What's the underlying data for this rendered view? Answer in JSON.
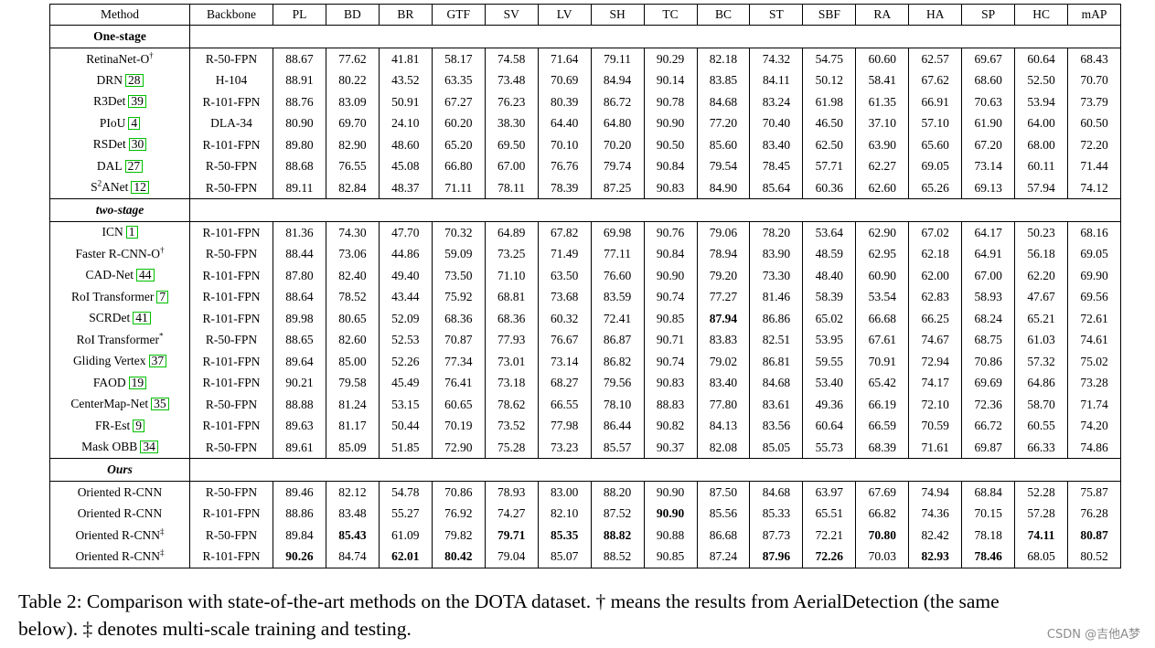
{
  "columns": [
    "Method",
    "Backbone",
    "PL",
    "BD",
    "BR",
    "GTF",
    "SV",
    "LV",
    "SH",
    "TC",
    "BC",
    "ST",
    "SBF",
    "RA",
    "HA",
    "SP",
    "HC",
    "mAP"
  ],
  "sections": [
    {
      "title": "One-stage",
      "italic": false,
      "rows": [
        {
          "name": "RetinaNet-O",
          "sup": "†",
          "ref": "",
          "backbone": "R-50-FPN",
          "values": [
            "88.67",
            "77.62",
            "41.81",
            "58.17",
            "74.58",
            "71.64",
            "79.11",
            "90.29",
            "82.18",
            "74.32",
            "54.75",
            "60.60",
            "62.57",
            "69.67",
            "60.64",
            "68.43"
          ],
          "bold": []
        },
        {
          "name": "DRN",
          "sup": "",
          "ref": "28",
          "backbone": "H-104",
          "values": [
            "88.91",
            "80.22",
            "43.52",
            "63.35",
            "73.48",
            "70.69",
            "84.94",
            "90.14",
            "83.85",
            "84.11",
            "50.12",
            "58.41",
            "67.62",
            "68.60",
            "52.50",
            "70.70"
          ],
          "bold": []
        },
        {
          "name": "R3Det",
          "sup": "",
          "ref": "39",
          "backbone": "R-101-FPN",
          "values": [
            "88.76",
            "83.09",
            "50.91",
            "67.27",
            "76.23",
            "80.39",
            "86.72",
            "90.78",
            "84.68",
            "83.24",
            "61.98",
            "61.35",
            "66.91",
            "70.63",
            "53.94",
            "73.79"
          ],
          "bold": []
        },
        {
          "name": "PIoU",
          "sup": "",
          "ref": "4",
          "backbone": "DLA-34",
          "values": [
            "80.90",
            "69.70",
            "24.10",
            "60.20",
            "38.30",
            "64.40",
            "64.80",
            "90.90",
            "77.20",
            "70.40",
            "46.50",
            "37.10",
            "57.10",
            "61.90",
            "64.00",
            "60.50"
          ],
          "bold": []
        },
        {
          "name": "RSDet",
          "sup": "",
          "ref": "30",
          "backbone": "R-101-FPN",
          "values": [
            "89.80",
            "82.90",
            "48.60",
            "65.20",
            "69.50",
            "70.10",
            "70.20",
            "90.50",
            "85.60",
            "83.40",
            "62.50",
            "63.90",
            "65.60",
            "67.20",
            "68.00",
            "72.20"
          ],
          "bold": []
        },
        {
          "name": "DAL",
          "sup": "",
          "ref": "27",
          "backbone": "R-50-FPN",
          "values": [
            "88.68",
            "76.55",
            "45.08",
            "66.80",
            "67.00",
            "76.76",
            "79.74",
            "90.84",
            "79.54",
            "78.45",
            "57.71",
            "62.27",
            "69.05",
            "73.14",
            "60.11",
            "71.44"
          ],
          "bold": []
        },
        {
          "name": "S",
          "sup2": "2",
          "nameTail": "ANet",
          "ref": "12",
          "backbone": "R-50-FPN",
          "values": [
            "89.11",
            "82.84",
            "48.37",
            "71.11",
            "78.11",
            "78.39",
            "87.25",
            "90.83",
            "84.90",
            "85.64",
            "60.36",
            "62.60",
            "65.26",
            "69.13",
            "57.94",
            "74.12"
          ],
          "bold": []
        }
      ]
    },
    {
      "title": "two-stage",
      "italic": true,
      "rows": [
        {
          "name": "ICN",
          "sup": "",
          "ref": "1",
          "backbone": "R-101-FPN",
          "values": [
            "81.36",
            "74.30",
            "47.70",
            "70.32",
            "64.89",
            "67.82",
            "69.98",
            "90.76",
            "79.06",
            "78.20",
            "53.64",
            "62.90",
            "67.02",
            "64.17",
            "50.23",
            "68.16"
          ],
          "bold": []
        },
        {
          "name": "Faster R-CNN-O",
          "sup": "†",
          "ref": "",
          "backbone": "R-50-FPN",
          "values": [
            "88.44",
            "73.06",
            "44.86",
            "59.09",
            "73.25",
            "71.49",
            "77.11",
            "90.84",
            "78.94",
            "83.90",
            "48.59",
            "62.95",
            "62.18",
            "64.91",
            "56.18",
            "69.05"
          ],
          "bold": []
        },
        {
          "name": "CAD-Net",
          "sup": "",
          "ref": "44",
          "backbone": "R-101-FPN",
          "values": [
            "87.80",
            "82.40",
            "49.40",
            "73.50",
            "71.10",
            "63.50",
            "76.60",
            "90.90",
            "79.20",
            "73.30",
            "48.40",
            "60.90",
            "62.00",
            "67.00",
            "62.20",
            "69.90"
          ],
          "bold": []
        },
        {
          "name": "RoI Transformer",
          "sup": "",
          "ref": "7",
          "backbone": "R-101-FPN",
          "values": [
            "88.64",
            "78.52",
            "43.44",
            "75.92",
            "68.81",
            "73.68",
            "83.59",
            "90.74",
            "77.27",
            "81.46",
            "58.39",
            "53.54",
            "62.83",
            "58.93",
            "47.67",
            "69.56"
          ],
          "bold": []
        },
        {
          "name": "SCRDet",
          "sup": "",
          "ref": "41",
          "backbone": "R-101-FPN",
          "values": [
            "89.98",
            "80.65",
            "52.09",
            "68.36",
            "68.36",
            "60.32",
            "72.41",
            "90.85",
            "87.94",
            "86.86",
            "65.02",
            "66.68",
            "66.25",
            "68.24",
            "65.21",
            "72.61"
          ],
          "bold": [
            8
          ]
        },
        {
          "name": "RoI Transformer",
          "sup": "*",
          "ref": "",
          "backbone": "R-50-FPN",
          "values": [
            "88.65",
            "82.60",
            "52.53",
            "70.87",
            "77.93",
            "76.67",
            "86.87",
            "90.71",
            "83.83",
            "82.51",
            "53.95",
            "67.61",
            "74.67",
            "68.75",
            "61.03",
            "74.61"
          ],
          "bold": []
        },
        {
          "name": "Gliding Vertex",
          "sup": "",
          "ref": "37",
          "backbone": "R-101-FPN",
          "values": [
            "89.64",
            "85.00",
            "52.26",
            "77.34",
            "73.01",
            "73.14",
            "86.82",
            "90.74",
            "79.02",
            "86.81",
            "59.55",
            "70.91",
            "72.94",
            "70.86",
            "57.32",
            "75.02"
          ],
          "bold": []
        },
        {
          "name": "FAOD",
          "sup": "",
          "ref": "19",
          "backbone": "R-101-FPN",
          "values": [
            "90.21",
            "79.58",
            "45.49",
            "76.41",
            "73.18",
            "68.27",
            "79.56",
            "90.83",
            "83.40",
            "84.68",
            "53.40",
            "65.42",
            "74.17",
            "69.69",
            "64.86",
            "73.28"
          ],
          "bold": []
        },
        {
          "name": "CenterMap-Net",
          "sup": "",
          "ref": "35",
          "backbone": "R-50-FPN",
          "values": [
            "88.88",
            "81.24",
            "53.15",
            "60.65",
            "78.62",
            "66.55",
            "78.10",
            "88.83",
            "77.80",
            "83.61",
            "49.36",
            "66.19",
            "72.10",
            "72.36",
            "58.70",
            "71.74"
          ],
          "bold": []
        },
        {
          "name": "FR-Est",
          "sup": "",
          "ref": "9",
          "backbone": "R-101-FPN",
          "values": [
            "89.63",
            "81.17",
            "50.44",
            "70.19",
            "73.52",
            "77.98",
            "86.44",
            "90.82",
            "84.13",
            "83.56",
            "60.64",
            "66.59",
            "70.59",
            "66.72",
            "60.55",
            "74.20"
          ],
          "bold": []
        },
        {
          "name": "Mask OBB",
          "sup": "",
          "ref": "34",
          "backbone": "R-50-FPN",
          "values": [
            "89.61",
            "85.09",
            "51.85",
            "72.90",
            "75.28",
            "73.23",
            "85.57",
            "90.37",
            "82.08",
            "85.05",
            "55.73",
            "68.39",
            "71.61",
            "69.87",
            "66.33",
            "74.86"
          ],
          "bold": []
        }
      ]
    },
    {
      "title": "Ours",
      "italic": true,
      "rows": [
        {
          "name": "Oriented R-CNN",
          "sup": "",
          "ref": "",
          "backbone": "R-50-FPN",
          "values": [
            "89.46",
            "82.12",
            "54.78",
            "70.86",
            "78.93",
            "83.00",
            "88.20",
            "90.90",
            "87.50",
            "84.68",
            "63.97",
            "67.69",
            "74.94",
            "68.84",
            "52.28",
            "75.87"
          ],
          "bold": []
        },
        {
          "name": "Oriented R-CNN",
          "sup": "",
          "ref": "",
          "backbone": "R-101-FPN",
          "values": [
            "88.86",
            "83.48",
            "55.27",
            "76.92",
            "74.27",
            "82.10",
            "87.52",
            "90.90",
            "85.56",
            "85.33",
            "65.51",
            "66.82",
            "74.36",
            "70.15",
            "57.28",
            "76.28"
          ],
          "bold": [
            7
          ]
        },
        {
          "name": "Oriented R-CNN",
          "sup": "‡",
          "ref": "",
          "backbone": "R-50-FPN",
          "values": [
            "89.84",
            "85.43",
            "61.09",
            "79.82",
            "79.71",
            "85.35",
            "88.82",
            "90.88",
            "86.68",
            "87.73",
            "72.21",
            "70.80",
            "82.42",
            "78.18",
            "74.11",
            "80.87"
          ],
          "bold": [
            1,
            4,
            5,
            6,
            11,
            14,
            15
          ]
        },
        {
          "name": "Oriented R-CNN",
          "sup": "‡",
          "ref": "",
          "backbone": "R-101-FPN",
          "values": [
            "90.26",
            "84.74",
            "62.01",
            "80.42",
            "79.04",
            "85.07",
            "88.52",
            "90.85",
            "87.24",
            "87.96",
            "72.26",
            "70.03",
            "82.93",
            "78.46",
            "68.05",
            "80.52"
          ],
          "bold": [
            0,
            2,
            3,
            9,
            10,
            12,
            13
          ]
        }
      ]
    }
  ],
  "caption": {
    "line1": "Table 2: Comparison with state-of-the-art methods on the DOTA dataset. † means the results from AerialDetection (the same",
    "line2": "below). ‡ denotes multi-scale training and testing."
  },
  "watermark": "CSDN @吉他A梦",
  "colors": {
    "ref_box": "#00c000",
    "watermark": "#8c8c8c"
  }
}
